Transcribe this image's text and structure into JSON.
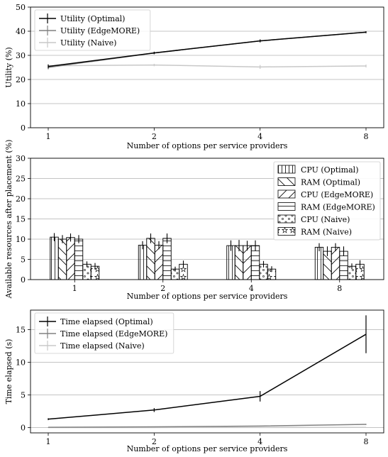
{
  "chart_data": [
    {
      "type": "line",
      "x": [
        1,
        2,
        4,
        8
      ],
      "xscale": "log2",
      "xticks": [
        "1",
        "2",
        "4",
        "8"
      ],
      "xlabel": "Number of options per service providers",
      "ylabel": "Utility (%)",
      "ylim": [
        0,
        50
      ],
      "yticks": [
        "0",
        "10",
        "20",
        "30",
        "40",
        "50"
      ],
      "grid": "horizontal",
      "legend_position": "top-left",
      "series": [
        {
          "name": "Utility (Optimal)",
          "color": "#000000",
          "values": [
            25.4,
            31.0,
            36.0,
            39.6
          ],
          "errors": [
            0.8,
            0.5,
            0.6,
            0.4
          ]
        },
        {
          "name": "Utility (EdgeMORE)",
          "color": "#808080",
          "values": [
            25.0,
            31.0,
            36.0,
            39.6
          ],
          "errors": [
            0.8,
            0.5,
            0.6,
            0.4
          ]
        },
        {
          "name": "Utility (Naive)",
          "color": "#c8c8c8",
          "values": [
            25.7,
            26.0,
            25.2,
            25.6
          ],
          "errors": [
            0.7,
            0.5,
            0.8,
            0.6
          ]
        }
      ]
    },
    {
      "type": "bar",
      "categories": [
        "1",
        "2",
        "4",
        "8"
      ],
      "xlabel": "Number of options per service providers",
      "ylabel": "Available resources after placement (%)",
      "ylim": [
        0,
        30
      ],
      "yticks": [
        "0",
        "5",
        "10",
        "15",
        "20",
        "25",
        "30"
      ],
      "grid": "horizontal",
      "legend_position": "top-right",
      "series": [
        {
          "name": "CPU (Optimal)",
          "hatch": "vertical",
          "values": [
            10.5,
            8.5,
            8.4,
            8.0
          ],
          "errors": [
            1.0,
            1.0,
            1.3,
            1.0
          ]
        },
        {
          "name": "RAM (Optimal)",
          "hatch": "backslash",
          "values": [
            10.0,
            10.2,
            8.4,
            7.0
          ],
          "errors": [
            1.0,
            1.2,
            1.4,
            1.2
          ]
        },
        {
          "name": "CPU (EdgeMORE)",
          "hatch": "slash",
          "values": [
            10.4,
            8.5,
            8.4,
            8.0
          ],
          "errors": [
            1.0,
            1.0,
            1.2,
            1.0
          ]
        },
        {
          "name": "RAM (EdgeMORE)",
          "hatch": "horizontal",
          "values": [
            10.0,
            10.2,
            8.4,
            7.0
          ],
          "errors": [
            1.0,
            1.2,
            1.3,
            1.2
          ]
        },
        {
          "name": "CPU (Naive)",
          "hatch": "dots",
          "values": [
            3.8,
            2.6,
            3.8,
            3.3
          ],
          "errors": [
            0.7,
            0.6,
            0.8,
            0.7
          ]
        },
        {
          "name": "RAM (Naive)",
          "hatch": "stars",
          "values": [
            3.3,
            3.8,
            2.6,
            3.8
          ],
          "errors": [
            0.8,
            0.9,
            0.7,
            1.0
          ]
        }
      ]
    },
    {
      "type": "line",
      "x": [
        1,
        2,
        4,
        8
      ],
      "xscale": "log2",
      "xticks": [
        "1",
        "2",
        "4",
        "8"
      ],
      "xlabel": "Number of options per service providers",
      "ylabel": "Time elapsed (s)",
      "ylim": [
        -0.8,
        18
      ],
      "yticks": [
        "0",
        "5",
        "10",
        "15"
      ],
      "grid": "horizontal",
      "legend_position": "top-left",
      "series": [
        {
          "name": "Time elapsed (Optimal)",
          "color": "#000000",
          "values": [
            1.3,
            2.7,
            4.8,
            14.3
          ],
          "errors": [
            0.15,
            0.3,
            0.8,
            2.9
          ]
        },
        {
          "name": "Time elapsed (EdgeMORE)",
          "color": "#808080",
          "values": [
            0.05,
            0.12,
            0.25,
            0.5
          ],
          "errors": [
            0.02,
            0.03,
            0.05,
            0.08
          ]
        },
        {
          "name": "Time elapsed (Naive)",
          "color": "#c8c8c8",
          "values": [
            0.02,
            0.02,
            0.03,
            0.04
          ],
          "errors": [
            0.01,
            0.01,
            0.01,
            0.01
          ]
        }
      ]
    }
  ]
}
